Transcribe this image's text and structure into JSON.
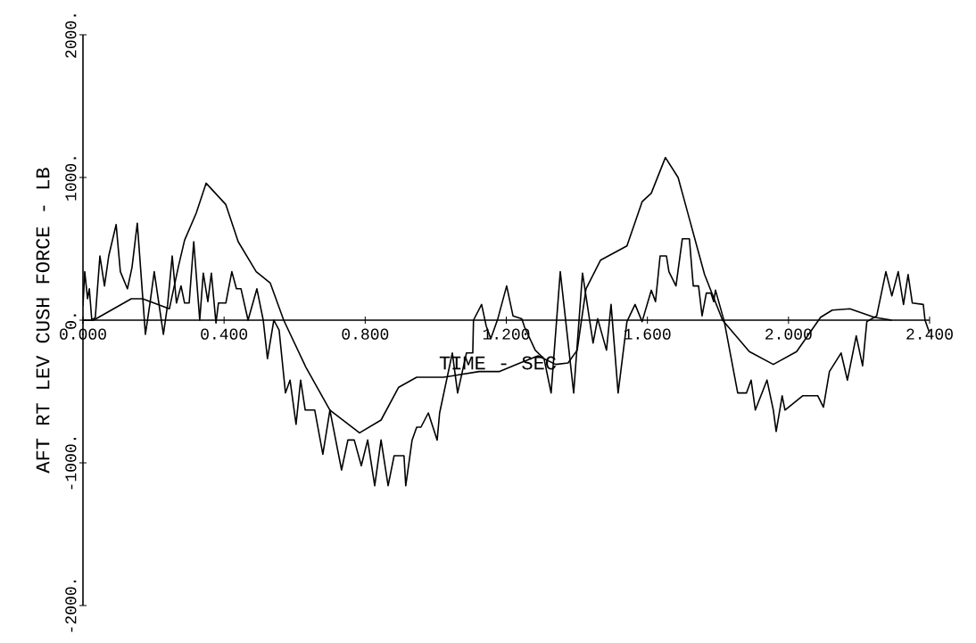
{
  "chart_data": {
    "type": "line",
    "xlabel": "TIME - SEC",
    "ylabel": "AFT RT LEV CUSH FORCE - LB",
    "xlim": [
      0,
      2.4
    ],
    "ylim": [
      -2000,
      2000
    ],
    "xticks": [
      {
        "value": 0,
        "label": "0.000"
      },
      {
        "value": 0.4,
        "label": "0.400"
      },
      {
        "value": 0.8,
        "label": "0.800"
      },
      {
        "value": 1.2,
        "label": "1.200"
      },
      {
        "value": 1.6,
        "label": "1.600"
      },
      {
        "value": 2.0,
        "label": "2.000"
      },
      {
        "value": 2.4,
        "label": "2.400"
      }
    ],
    "yticks": [
      {
        "value": -2000,
        "label": "-2000."
      },
      {
        "value": -1000,
        "label": "-1000."
      },
      {
        "value": 0,
        "label": "0."
      },
      {
        "value": 1000,
        "label": "1000."
      },
      {
        "value": 2000,
        "label": "2000."
      }
    ],
    "series": [
      {
        "color": "#000000",
        "x": [
          0.0,
          0.03,
          0.137,
          0.169,
          0.245,
          0.271,
          0.288,
          0.321,
          0.349,
          0.405,
          0.44,
          0.491,
          0.531,
          0.569,
          0.632,
          0.7,
          0.784,
          0.845,
          0.895,
          0.946,
          1.022,
          1.123,
          1.181,
          1.239,
          1.29,
          1.34,
          1.375,
          1.401,
          1.426,
          1.467,
          1.542,
          1.585,
          1.611,
          1.651,
          1.687,
          1.719,
          1.762,
          1.813,
          1.889,
          1.957,
          2.023,
          2.091,
          2.124,
          2.174,
          2.243,
          2.293
        ],
        "values": [
          0,
          0,
          150,
          150,
          80,
          380,
          560,
          750,
          960,
          810,
          550,
          340,
          260,
          0,
          -330,
          -630,
          -790,
          -700,
          -470,
          -400,
          -400,
          -360,
          -360,
          -300,
          -250,
          -310,
          -300,
          -210,
          220,
          420,
          520,
          830,
          890,
          1140,
          1000,
          710,
          320,
          0,
          -220,
          -310,
          -220,
          20,
          70,
          80,
          20,
          0
        ]
      },
      {
        "color": "#000000",
        "x": [
          0.0,
          0.005,
          0.013,
          0.018,
          0.025,
          0.035,
          0.048,
          0.061,
          0.073,
          0.094,
          0.106,
          0.126,
          0.139,
          0.154,
          0.167,
          0.177,
          0.19,
          0.202,
          0.215,
          0.228,
          0.24,
          0.253,
          0.265,
          0.278,
          0.288,
          0.301,
          0.314,
          0.331,
          0.341,
          0.354,
          0.364,
          0.377,
          0.384,
          0.405,
          0.422,
          0.435,
          0.448,
          0.468,
          0.493,
          0.511,
          0.523,
          0.541,
          0.556,
          0.574,
          0.587,
          0.604,
          0.617,
          0.63,
          0.657,
          0.68,
          0.7,
          0.733,
          0.751,
          0.769,
          0.789,
          0.807,
          0.827,
          0.845,
          0.865,
          0.882,
          0.91,
          0.915,
          0.933,
          0.946,
          0.958,
          0.979,
          1.004,
          1.011,
          1.047,
          1.062,
          1.087,
          1.105,
          1.107,
          1.13,
          1.143,
          1.156,
          1.176,
          1.201,
          1.219,
          1.244,
          1.252,
          1.282,
          1.307,
          1.327,
          1.353,
          1.391,
          1.416,
          1.446,
          1.459,
          1.484,
          1.497,
          1.517,
          1.542,
          1.565,
          1.585,
          1.611,
          1.623,
          1.636,
          1.654,
          1.661,
          1.681,
          1.699,
          1.719,
          1.73,
          1.745,
          1.755,
          1.767,
          1.78,
          1.788,
          1.793,
          1.818,
          1.856,
          1.881,
          1.894,
          1.906,
          1.939,
          1.957,
          1.965,
          1.982,
          1.99,
          2.04,
          2.083,
          2.099,
          2.116,
          2.149,
          2.167,
          2.192,
          2.21,
          2.222,
          2.25,
          2.276,
          2.293,
          2.311,
          2.326,
          2.339,
          2.351,
          2.382,
          2.387,
          2.4
        ],
        "values": [
          100,
          340,
          150,
          220,
          0,
          20,
          450,
          240,
          450,
          670,
          340,
          220,
          370,
          680,
          240,
          -100,
          120,
          340,
          120,
          -100,
          110,
          450,
          120,
          240,
          120,
          120,
          550,
          0,
          330,
          130,
          330,
          -20,
          120,
          120,
          340,
          220,
          220,
          0,
          220,
          0,
          -270,
          0,
          -70,
          -510,
          -420,
          -730,
          -420,
          -630,
          -630,
          -940,
          -630,
          -1050,
          -840,
          -840,
          -1020,
          -840,
          -1160,
          -840,
          -1160,
          -950,
          -950,
          -1160,
          -840,
          -750,
          -750,
          -650,
          -840,
          -650,
          -230,
          -510,
          -230,
          -230,
          0,
          110,
          -40,
          -130,
          10,
          240,
          30,
          10,
          -50,
          -210,
          -270,
          -510,
          340,
          -510,
          330,
          -160,
          10,
          -210,
          110,
          -510,
          -10,
          110,
          -10,
          210,
          130,
          450,
          450,
          340,
          240,
          570,
          570,
          240,
          240,
          30,
          190,
          190,
          130,
          210,
          -10,
          -510,
          -510,
          -420,
          -630,
          -420,
          -630,
          -780,
          -530,
          -630,
          -530,
          -530,
          -610,
          -360,
          -230,
          -420,
          -110,
          -320,
          -10,
          30,
          340,
          170,
          340,
          110,
          320,
          120,
          110,
          0,
          -90
        ]
      }
    ]
  }
}
